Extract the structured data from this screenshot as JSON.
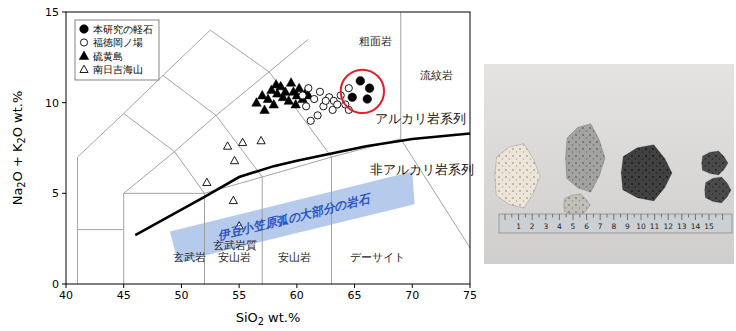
{
  "chart_data": {
    "type": "scatter",
    "xlabel": "SiO2 wt.%",
    "ylabel": "Na2O + K2O wt.%",
    "xlim": [
      40,
      75
    ],
    "ylim": [
      0,
      15
    ],
    "xticks": [
      40,
      45,
      50,
      55,
      60,
      65,
      70,
      75
    ],
    "yticks": [
      0,
      5,
      10,
      15
    ],
    "legend": "upper left",
    "series": [
      {
        "name": "本研究の軽石",
        "color": "#000000",
        "marker": "filled-circle",
        "x": [
          64.8,
          65.5,
          66.3,
          66.1
        ],
        "values": [
          10.3,
          11.2,
          10.8,
          10.2
        ]
      },
      {
        "name": "福徳岡ノ場",
        "color": "#000000",
        "marker": "open-circle",
        "x": [
          60.5,
          61.0,
          61.5,
          62.0,
          62.3,
          62.8,
          63.2,
          63.5,
          63.8,
          64.2,
          64.5,
          61.8,
          61.2,
          62.5,
          63.1,
          60.8,
          64.5
        ],
        "values": [
          10.4,
          10.8,
          10.2,
          10.6,
          9.8,
          10.3,
          10.1,
          9.9,
          10.4,
          9.9,
          10.8,
          9.3,
          9.0,
          10.1,
          9.6,
          9.8,
          9.6
        ]
      },
      {
        "name": "硫黄島",
        "color": "#000000",
        "marker": "filled-triangle",
        "x": [
          56.5,
          57.0,
          57.5,
          57.8,
          58.0,
          58.3,
          58.6,
          58.8,
          59.0,
          59.3,
          59.5,
          59.7,
          60.0,
          60.2,
          60.5,
          60.8,
          61.0,
          58.2,
          59.9,
          57.2
        ],
        "values": [
          10.0,
          10.4,
          10.2,
          10.7,
          9.9,
          10.5,
          10.9,
          10.3,
          10.6,
          10.1,
          11.1,
          10.6,
          10.4,
          10.8,
          10.2,
          10.6,
          10.4,
          11.0,
          9.9,
          9.6
        ]
      },
      {
        "name": "南日吉海山",
        "color": "#000000",
        "marker": "open-triangle",
        "x": [
          52.2,
          54.0,
          54.6,
          55.3,
          56.9,
          54.5,
          55.0
        ],
        "values": [
          5.6,
          7.6,
          6.8,
          7.8,
          7.9,
          4.6,
          3.2
        ]
      }
    ],
    "divide_line": {
      "color": "#000000",
      "x": [
        46,
        48,
        50,
        52,
        55,
        58,
        60,
        63,
        66,
        70,
        75
      ],
      "values": [
        2.7,
        3.4,
        4.1,
        4.8,
        5.9,
        6.5,
        6.8,
        7.2,
        7.6,
        8.0,
        8.3
      ]
    },
    "field_boundaries": [
      [
        [
          41,
          0
        ],
        [
          41,
          7
        ],
        [
          45,
          9.4
        ],
        [
          48.4,
          11.5
        ],
        [
          52.5,
          14
        ]
      ],
      [
        [
          41,
          3
        ],
        [
          45,
          3
        ]
      ],
      [
        [
          45,
          0
        ],
        [
          45,
          5
        ],
        [
          49.4,
          7.3
        ],
        [
          53,
          9.3
        ],
        [
          57.6,
          11.7
        ],
        [
          61,
          13.5
        ]
      ],
      [
        [
          45,
          5
        ],
        [
          52,
          5
        ],
        [
          57,
          5.9
        ],
        [
          63,
          7
        ],
        [
          69,
          8
        ]
      ],
      [
        [
          52,
          0
        ],
        [
          52,
          5
        ]
      ],
      [
        [
          57,
          0
        ],
        [
          57,
          5.9
        ]
      ],
      [
        [
          63,
          0
        ],
        [
          63,
          7
        ]
      ],
      [
        [
          77,
          0
        ],
        [
          69,
          8
        ]
      ],
      [
        [
          69,
          8
        ],
        [
          69,
          15
        ]
      ],
      [
        [
          49.4,
          7.3
        ],
        [
          52,
          5
        ]
      ],
      [
        [
          53,
          9.3
        ],
        [
          57,
          5.9
        ]
      ],
      [
        [
          57.6,
          11.7
        ],
        [
          63,
          7
        ]
      ],
      [
        [
          52.5,
          14
        ],
        [
          57.6,
          11.7
        ]
      ],
      [
        [
          48.4,
          11.5
        ],
        [
          53,
          9.3
        ]
      ],
      [
        [
          45,
          9.4
        ],
        [
          49.4,
          7.3
        ]
      ]
    ],
    "field_labels": [
      {
        "text": "粗面岩",
        "x": 66.8,
        "y": 13.4
      },
      {
        "text": "流紋岩",
        "x": 72.1,
        "y": 11.5
      },
      {
        "text": "玄武岩",
        "x": 50.7,
        "y": 1.5
      },
      {
        "text": "玄武岩質\n安山岩",
        "x": 54.6,
        "y": 1.8
      },
      {
        "text": "安山岩",
        "x": 59.8,
        "y": 1.5
      },
      {
        "text": "デーサイト",
        "x": 67.0,
        "y": 1.5
      }
    ],
    "series_labels": [
      {
        "text": "アルカリ岩系列",
        "x": 70.7,
        "y": 9.1
      },
      {
        "text": "非アルカリ岩系列",
        "x": 70.8,
        "y": 6.3
      }
    ],
    "band": {
      "label": "伊豆小笠原弧の大部分の岩石",
      "color": "#9db8e4",
      "polygon": [
        [
          49.0,
          2.9
        ],
        [
          70.0,
          6.2
        ],
        [
          70.2,
          4.4
        ],
        [
          49.7,
          1.2
        ]
      ]
    },
    "highlight_color": "#e3202a"
  },
  "photo": {
    "ruler_labels": [
      1,
      2,
      3,
      4,
      5,
      6,
      7,
      8,
      9,
      10,
      11,
      12,
      13,
      14,
      15
    ]
  }
}
